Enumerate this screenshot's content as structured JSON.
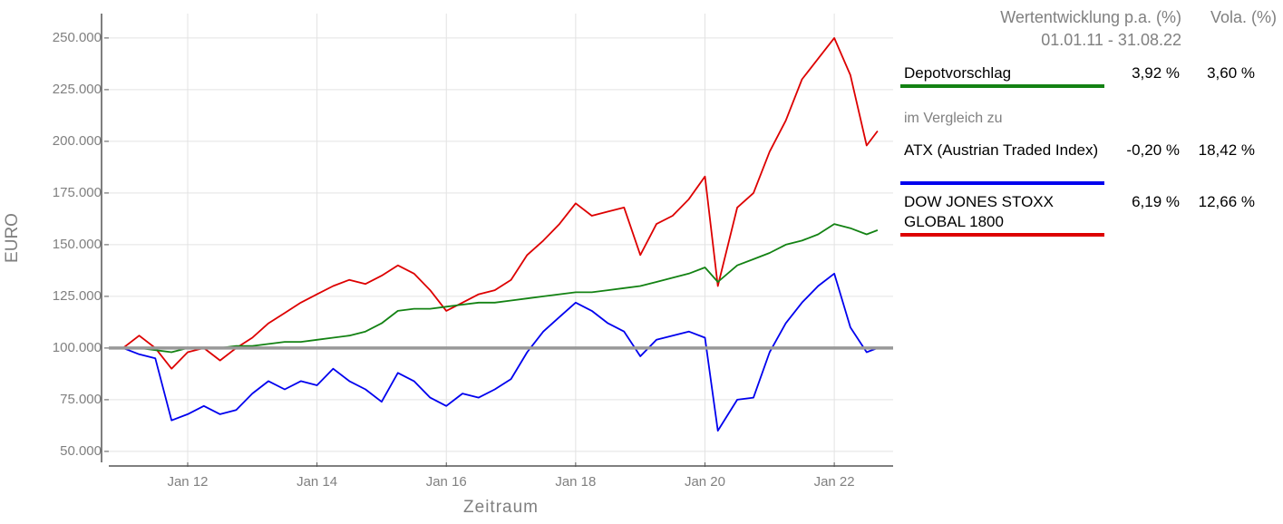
{
  "chart_data": {
    "type": "line",
    "x_label": "Zeitraum",
    "y_label": "EURO",
    "legend_title": "Wertentwicklung p.a. (%)",
    "legend_vola_title": "Vola. (%)",
    "legend_period": "01.01.11 - 31.08.22",
    "comparison_label": "im Vergleich zu",
    "x": [
      2011,
      2011.25,
      2011.5,
      2011.75,
      2012,
      2012.25,
      2012.5,
      2012.75,
      2013,
      2013.25,
      2013.5,
      2013.75,
      2014,
      2014.25,
      2014.5,
      2014.75,
      2015,
      2015.25,
      2015.5,
      2015.75,
      2016,
      2016.25,
      2016.5,
      2016.75,
      2017,
      2017.25,
      2017.5,
      2017.75,
      2018,
      2018.25,
      2018.5,
      2018.75,
      2019,
      2019.25,
      2019.5,
      2019.75,
      2020,
      2020.2,
      2020.5,
      2020.75,
      2021,
      2021.25,
      2021.5,
      2021.75,
      2022,
      2022.25,
      2022.5,
      2022.67
    ],
    "series": [
      {
        "name": "Depotvorschlag",
        "color": "#138213",
        "return": {
          "value": 3.92,
          "label": "3,92 %"
        },
        "vola": {
          "value": 3.6,
          "label": "3,60 %"
        },
        "values": [
          100000,
          100000,
          99000,
          98000,
          100000,
          100000,
          100000,
          101000,
          101000,
          102000,
          103000,
          103000,
          104000,
          105000,
          106000,
          108000,
          112000,
          118000,
          119000,
          119000,
          120000,
          121000,
          122000,
          122000,
          123000,
          124000,
          125000,
          126000,
          127000,
          127000,
          128000,
          129000,
          130000,
          132000,
          134000,
          136000,
          139000,
          132000,
          140000,
          143000,
          146000,
          150000,
          152000,
          155000,
          160000,
          158000,
          155000,
          157000
        ]
      },
      {
        "name": "ATX (Austrian Traded Index)",
        "color": "#0000ee",
        "return": {
          "value": -0.2,
          "label": "-0,20 %"
        },
        "vola": {
          "value": 18.42,
          "label": "18,42 %"
        },
        "values": [
          100000,
          97000,
          95000,
          65000,
          68000,
          72000,
          68000,
          70000,
          78000,
          84000,
          80000,
          84000,
          82000,
          90000,
          84000,
          80000,
          74000,
          88000,
          84000,
          76000,
          72000,
          78000,
          76000,
          80000,
          85000,
          98000,
          108000,
          115000,
          122000,
          118000,
          112000,
          108000,
          96000,
          104000,
          106000,
          108000,
          105000,
          60000,
          75000,
          76000,
          98000,
          112000,
          122000,
          130000,
          136000,
          110000,
          98000,
          100000
        ]
      },
      {
        "name": "DOW JONES STOXX GLOBAL 1800",
        "color": "#dd0000",
        "return": {
          "value": 6.19,
          "label": "6,19 %"
        },
        "vola": {
          "value": 12.66,
          "label": "12,66 %"
        },
        "values": [
          100000,
          106000,
          100000,
          90000,
          98000,
          100000,
          94000,
          100000,
          105000,
          112000,
          117000,
          122000,
          126000,
          130000,
          133000,
          131000,
          135000,
          140000,
          136000,
          128000,
          118000,
          122000,
          126000,
          128000,
          133000,
          145000,
          152000,
          160000,
          170000,
          164000,
          166000,
          168000,
          145000,
          160000,
          164000,
          172000,
          183000,
          130000,
          168000,
          175000,
          195000,
          210000,
          230000,
          240000,
          250000,
          232000,
          198000,
          205000
        ]
      }
    ],
    "hline": {
      "value": 100000,
      "color": "#999999"
    },
    "xlim": [
      2010.78,
      2022.91
    ],
    "xticks": [
      {
        "value": 2012,
        "label": "Jan 12"
      },
      {
        "value": 2014,
        "label": "Jan 14"
      },
      {
        "value": 2016,
        "label": "Jan 16"
      },
      {
        "value": 2018,
        "label": "Jan 18"
      },
      {
        "value": 2020,
        "label": "Jan 20"
      },
      {
        "value": 2022,
        "label": "Jan 22"
      }
    ],
    "ylim": [
      44700,
      261800
    ],
    "yticks": [
      {
        "value": 50000,
        "label": "50.000"
      },
      {
        "value": 75000,
        "label": "75.000"
      },
      {
        "value": 100000,
        "label": "100.000"
      },
      {
        "value": 125000,
        "label": "125.000"
      },
      {
        "value": 150000,
        "label": "150.000"
      },
      {
        "value": 175000,
        "label": "175.000"
      },
      {
        "value": 200000,
        "label": "200.000"
      },
      {
        "value": 225000,
        "label": "225.000"
      },
      {
        "value": 250000,
        "label": "250.000"
      }
    ],
    "grid": true
  }
}
